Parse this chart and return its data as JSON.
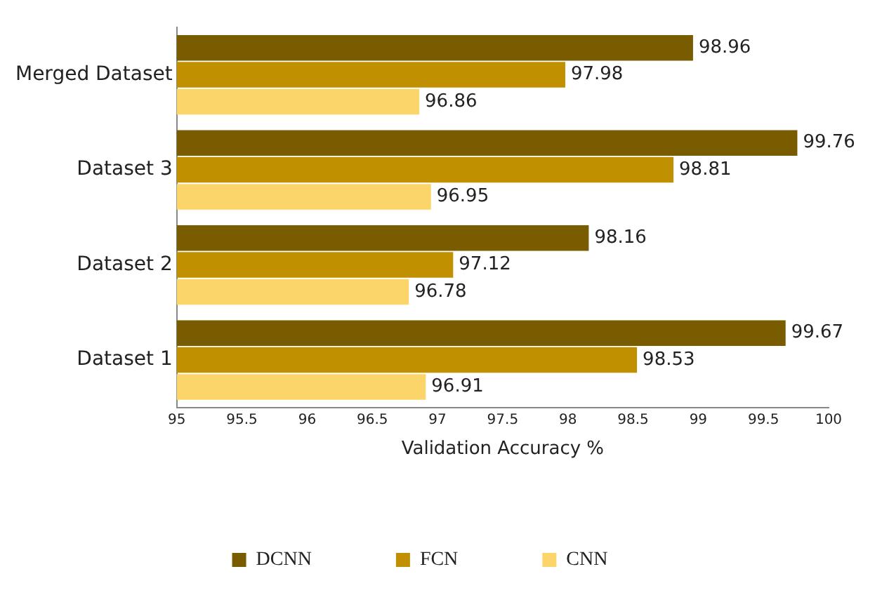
{
  "chart_data": {
    "type": "bar",
    "orientation": "horizontal",
    "xlabel": "Validation Accuracy %",
    "categories": [
      "Merged Dataset",
      "Dataset 3",
      "Dataset 2",
      "Dataset 1"
    ],
    "series": [
      {
        "name": "DCNN",
        "color": "#7a5c00",
        "values": [
          98.96,
          99.76,
          98.16,
          99.67
        ]
      },
      {
        "name": "FCN",
        "color": "#c09000",
        "values": [
          97.98,
          98.81,
          97.12,
          98.53
        ]
      },
      {
        "name": "CNN",
        "color": "#fcd56a",
        "values": [
          96.86,
          96.95,
          96.78,
          96.91
        ]
      }
    ],
    "xlim": [
      95,
      100
    ],
    "xticks": [
      95,
      95.5,
      96,
      96.5,
      97,
      97.5,
      98,
      98.5,
      99,
      99.5,
      100
    ],
    "data_labels": true,
    "grid": false,
    "legend": "bottom"
  }
}
